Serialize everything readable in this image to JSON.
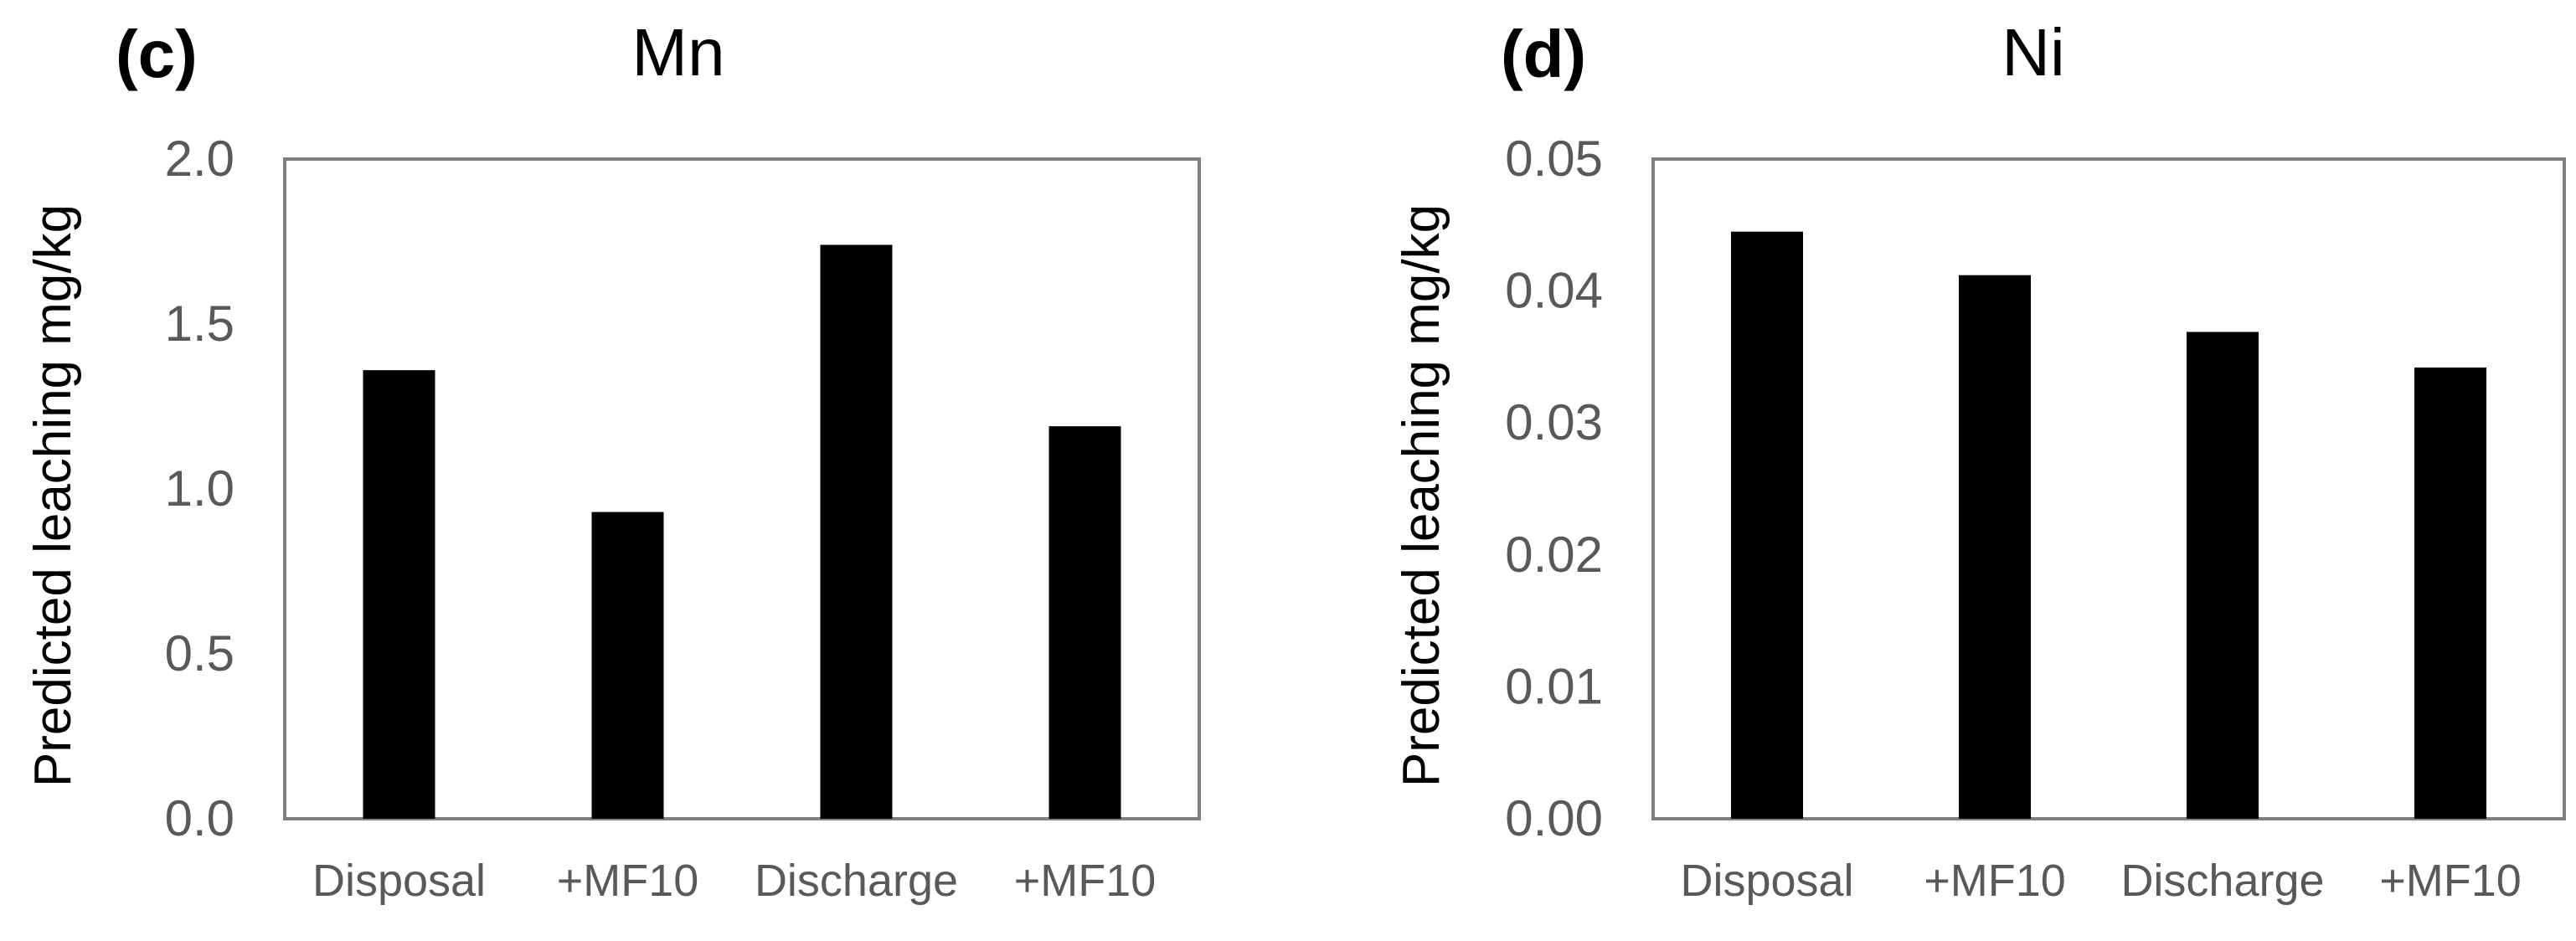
{
  "chart_data": [
    {
      "panel": "(c)",
      "type": "bar",
      "title": "Mn",
      "xlabel": "",
      "ylabel": "Predicted leaching mg/kg",
      "categories": [
        "Disposal",
        "+MF10",
        "Discharge",
        "+MF10"
      ],
      "values": [
        1.36,
        0.93,
        1.74,
        1.19
      ],
      "ylim": [
        0,
        2.0
      ],
      "yticks": [
        "0.0",
        "0.5",
        "1.0",
        "1.5",
        "2.0"
      ],
      "grid": false,
      "bar_color": "#000000"
    },
    {
      "panel": "(d)",
      "type": "bar",
      "title": "Ni",
      "xlabel": "",
      "ylabel": "Predicted leaching mg/kg",
      "categories": [
        "Disposal",
        "+MF10",
        "Discharge",
        "+MF10"
      ],
      "values": [
        0.0445,
        0.0412,
        0.0369,
        0.0342
      ],
      "ylim": [
        0,
        0.05
      ],
      "yticks": [
        "0.00",
        "0.01",
        "0.02",
        "0.03",
        "0.04",
        "0.05"
      ],
      "grid": false,
      "bar_color": "#000000"
    }
  ]
}
